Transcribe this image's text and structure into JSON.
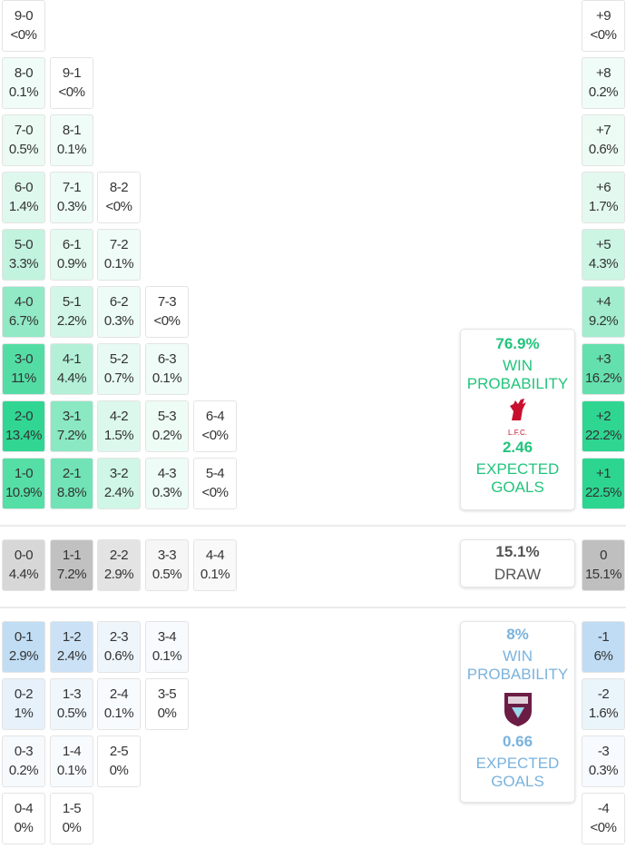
{
  "colors": {
    "win": "#1fd38a",
    "draw": "#b0b0b0",
    "loss": "#a8cff0"
  },
  "win_rows": [
    [
      [
        "9-0",
        "<0%"
      ]
    ],
    [
      [
        "8-0",
        "0.1%"
      ],
      [
        "9-1",
        "<0%"
      ]
    ],
    [
      [
        "7-0",
        "0.5%"
      ],
      [
        "8-1",
        "0.1%"
      ]
    ],
    [
      [
        "6-0",
        "1.4%"
      ],
      [
        "7-1",
        "0.3%"
      ],
      [
        "8-2",
        "<0%"
      ]
    ],
    [
      [
        "5-0",
        "3.3%"
      ],
      [
        "6-1",
        "0.9%"
      ],
      [
        "7-2",
        "0.1%"
      ]
    ],
    [
      [
        "4-0",
        "6.7%"
      ],
      [
        "5-1",
        "2.2%"
      ],
      [
        "6-2",
        "0.3%"
      ],
      [
        "7-3",
        "<0%"
      ]
    ],
    [
      [
        "3-0",
        "11%"
      ],
      [
        "4-1",
        "4.4%"
      ],
      [
        "5-2",
        "0.7%"
      ],
      [
        "6-3",
        "0.1%"
      ]
    ],
    [
      [
        "2-0",
        "13.4%"
      ],
      [
        "3-1",
        "7.2%"
      ],
      [
        "4-2",
        "1.5%"
      ],
      [
        "5-3",
        "0.2%"
      ],
      [
        "6-4",
        "<0%"
      ]
    ],
    [
      [
        "1-0",
        "10.9%"
      ],
      [
        "2-1",
        "8.8%"
      ],
      [
        "3-2",
        "2.4%"
      ],
      [
        "4-3",
        "0.3%"
      ],
      [
        "5-4",
        "<0%"
      ]
    ]
  ],
  "draw_row": [
    [
      "0-0",
      "4.4%"
    ],
    [
      "1-1",
      "7.2%"
    ],
    [
      "2-2",
      "2.9%"
    ],
    [
      "3-3",
      "0.5%"
    ],
    [
      "4-4",
      "0.1%"
    ]
  ],
  "loss_rows": [
    [
      [
        "0-1",
        "2.9%"
      ],
      [
        "1-2",
        "2.4%"
      ],
      [
        "2-3",
        "0.6%"
      ],
      [
        "3-4",
        "0.1%"
      ]
    ],
    [
      [
        "0-2",
        "1%"
      ],
      [
        "1-3",
        "0.5%"
      ],
      [
        "2-4",
        "0.1%"
      ],
      [
        "3-5",
        "0%"
      ]
    ],
    [
      [
        "0-3",
        "0.2%"
      ],
      [
        "1-4",
        "0.1%"
      ],
      [
        "2-5",
        "0%"
      ]
    ],
    [
      [
        "0-4",
        "0%"
      ],
      [
        "1-5",
        "0%"
      ]
    ]
  ],
  "margin_win": [
    [
      "+9",
      "<0%"
    ],
    [
      "+8",
      "0.2%"
    ],
    [
      "+7",
      "0.6%"
    ],
    [
      "+6",
      "1.7%"
    ],
    [
      "+5",
      "4.3%"
    ],
    [
      "+4",
      "9.2%"
    ],
    [
      "+3",
      "16.2%"
    ],
    [
      "+2",
      "22.2%"
    ],
    [
      "+1",
      "22.5%"
    ]
  ],
  "margin_draw": [
    "0",
    "15.1%"
  ],
  "margin_loss": [
    [
      "-1",
      "6%"
    ],
    [
      "-2",
      "1.6%"
    ],
    [
      "-3",
      "0.3%"
    ],
    [
      "-4",
      "<0%"
    ]
  ],
  "home": {
    "win_pct": "76.9%",
    "win_label_1": "WIN",
    "win_label_2": "PROBABILITY",
    "crest_text": "L.F.C.",
    "xg": "2.46",
    "xg_label_1": "EXPECTED",
    "xg_label_2": "GOALS"
  },
  "draw": {
    "pct": "15.1%",
    "label": "DRAW"
  },
  "away": {
    "win_pct": "8%",
    "win_label_1": "WIN",
    "win_label_2": "PROBABILITY",
    "xg": "0.66",
    "xg_label_1": "EXPECTED",
    "xg_label_2": "GOALS"
  }
}
